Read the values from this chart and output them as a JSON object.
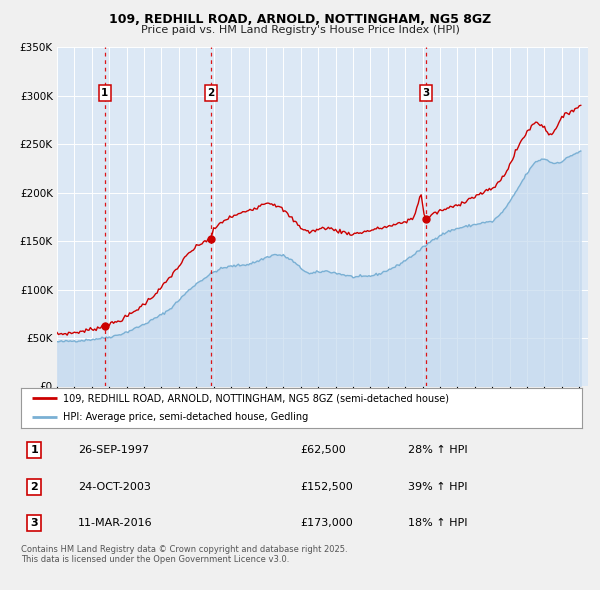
{
  "title": "109, REDHILL ROAD, ARNOLD, NOTTINGHAM, NG5 8GZ",
  "subtitle": "Price paid vs. HM Land Registry's House Price Index (HPI)",
  "fig_bg_color": "#f0f0f0",
  "plot_bg_color": "#dce8f5",
  "grid_color": "#ffffff",
  "legend_bg": "#ffffff",
  "sale1_x": 1997.75,
  "sale1_price": 62500,
  "sale1_label": "1",
  "sale2_x": 2003.833,
  "sale2_price": 152500,
  "sale2_label": "2",
  "sale3_x": 2016.2,
  "sale3_price": 173000,
  "sale3_label": "3",
  "legend_line1": "109, REDHILL ROAD, ARNOLD, NOTTINGHAM, NG5 8GZ (semi-detached house)",
  "legend_line2": "HPI: Average price, semi-detached house, Gedling",
  "table_rows": [
    [
      "1",
      "26-SEP-1997",
      "£62,500",
      "28% ↑ HPI"
    ],
    [
      "2",
      "24-OCT-2003",
      "£152,500",
      "39% ↑ HPI"
    ],
    [
      "3",
      "11-MAR-2016",
      "£173,000",
      "18% ↑ HPI"
    ]
  ],
  "footnote": "Contains HM Land Registry data © Crown copyright and database right 2025.\nThis data is licensed under the Open Government Licence v3.0.",
  "price_line_color": "#cc0000",
  "hpi_line_color": "#7ab0d4",
  "hpi_fill_color": "#c5d9ee",
  "vline_color": "#dd0000",
  "ylim": [
    0,
    350000
  ],
  "yticks": [
    0,
    50000,
    100000,
    150000,
    200000,
    250000,
    300000,
    350000
  ],
  "xlim_start": 1995.0,
  "xlim_end": 2025.5
}
